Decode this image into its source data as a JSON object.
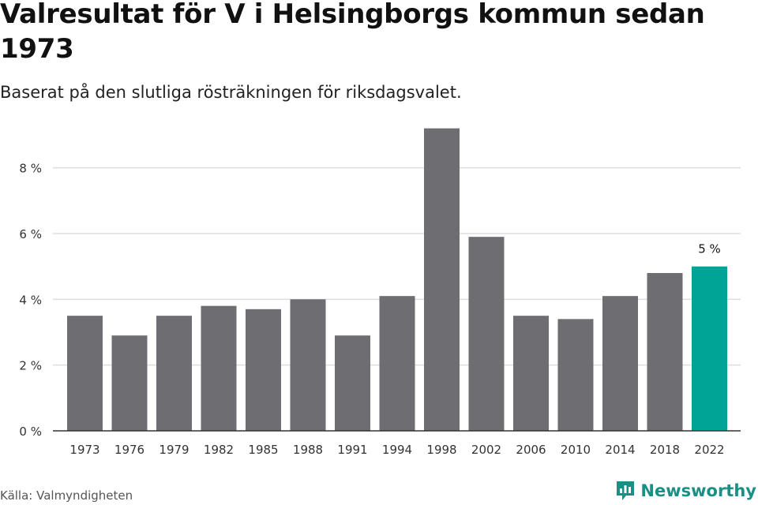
{
  "title": "Valresultat för V i Helsingborgs kommun sedan 1973",
  "subtitle": "Baserat på den slutliga rösträkningen för riksdagsvalet.",
  "source": "Källa: Valmyndigheten",
  "brand": {
    "name": "Newsworthy",
    "icon": "newsworthy-logo-icon"
  },
  "colors": {
    "bar": "#6e6d72",
    "highlight": "#00a497",
    "grid": "#dddddd",
    "axis": "#333333",
    "brand": "#1b8f86"
  },
  "chart_data": {
    "type": "bar",
    "categories": [
      "1973",
      "1976",
      "1979",
      "1982",
      "1985",
      "1988",
      "1991",
      "1994",
      "1998",
      "2002",
      "2006",
      "2010",
      "2014",
      "2018",
      "2022"
    ],
    "values": [
      3.5,
      2.9,
      3.5,
      3.8,
      3.7,
      4.0,
      2.9,
      4.1,
      9.2,
      5.9,
      3.5,
      3.4,
      4.1,
      4.8,
      5.0
    ],
    "highlight_index": 14,
    "data_labels": [
      {
        "index": 14,
        "text": "5 %"
      }
    ],
    "yticks": [
      0,
      2,
      4,
      6,
      8
    ],
    "ytick_labels": [
      "0 %",
      "2 %",
      "4 %",
      "6 %",
      "8 %"
    ],
    "ylim": [
      0,
      9.6
    ],
    "grid": true,
    "xlabel": "",
    "ylabel": ""
  }
}
